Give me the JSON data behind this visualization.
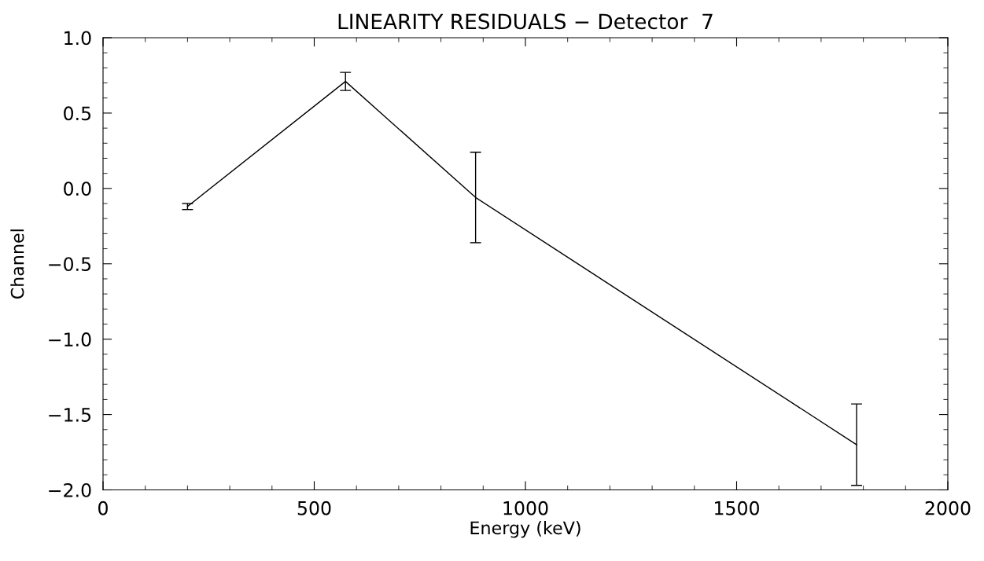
{
  "chart_data": {
    "type": "line",
    "title": "LINEARITY RESIDUALS − Detector  7",
    "xlabel": "Energy (keV)",
    "ylabel": "Channel",
    "x": [
      200,
      574,
      882,
      1784
    ],
    "series": [
      {
        "color": "#000000",
        "values": [
          -0.12,
          0.71,
          -0.06,
          -1.7
        ],
        "errors": [
          0.02,
          0.06,
          0.3,
          0.27
        ]
      }
    ],
    "xlim": [
      0,
      2000
    ],
    "xticks": [
      0,
      500,
      1000,
      1500,
      2000
    ],
    "ylim": [
      -2.0,
      1.0
    ],
    "yticks": [
      {
        "value": -2.0,
        "label": "−2.0"
      },
      {
        "value": -1.5,
        "label": "−1.5"
      },
      {
        "value": -1.0,
        "label": "−1.0"
      },
      {
        "value": -0.5,
        "label": "−0.5"
      },
      {
        "value": 0.0,
        "label": "0.0"
      },
      {
        "value": 0.5,
        "label": "0.5"
      },
      {
        "value": 1.0,
        "label": "1.0"
      }
    ],
    "grid": false,
    "marker": "none",
    "line_style": "solid"
  }
}
